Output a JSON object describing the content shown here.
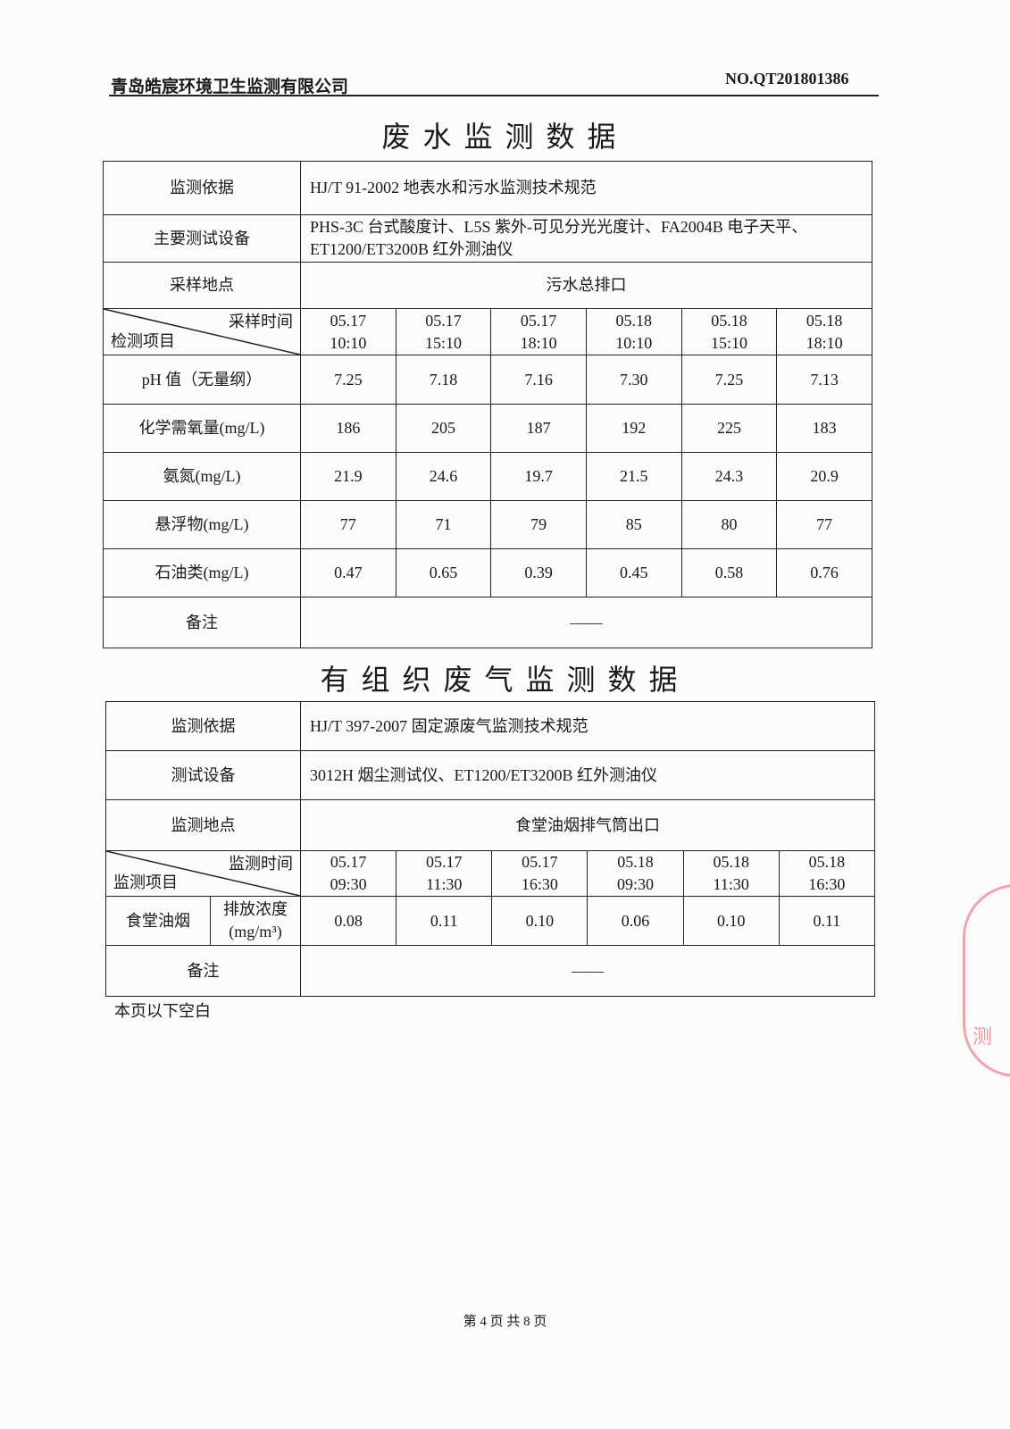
{
  "header": {
    "company": "青岛皓宸环境卫生监测有限公司",
    "report_no": "NO.QT201801386"
  },
  "wastewater": {
    "title": "废水监测数据",
    "basis_label": "监测依据",
    "basis": "HJ/T 91-2002  地表水和污水监测技术规范",
    "equipment_label": "主要测试设备",
    "equipment_line1": "PHS-3C 台式酸度计、L5S 紫外-可见分光光度计、FA2004B 电子天平、",
    "equipment_line2": "ET1200/ET3200B 红外测油仪",
    "site_label": "采样地点",
    "site": "污水总排口",
    "time_label": "采样时间",
    "item_label": "检测项目",
    "times": [
      [
        "05.17",
        "10:10"
      ],
      [
        "05.17",
        "15:10"
      ],
      [
        "05.17",
        "18:10"
      ],
      [
        "05.18",
        "10:10"
      ],
      [
        "05.18",
        "15:10"
      ],
      [
        "05.18",
        "18:10"
      ]
    ],
    "rows": [
      {
        "name": "pH 值（无量纲）",
        "values": [
          "7.25",
          "7.18",
          "7.16",
          "7.30",
          "7.25",
          "7.13"
        ]
      },
      {
        "name": "化学需氧量(mg/L)",
        "values": [
          "186",
          "205",
          "187",
          "192",
          "225",
          "183"
        ]
      },
      {
        "name": "氨氮(mg/L)",
        "values": [
          "21.9",
          "24.6",
          "19.7",
          "21.5",
          "24.3",
          "20.9"
        ]
      },
      {
        "name": "悬浮物(mg/L)",
        "values": [
          "77",
          "71",
          "79",
          "85",
          "80",
          "77"
        ]
      },
      {
        "name": "石油类(mg/L)",
        "values": [
          "0.47",
          "0.65",
          "0.39",
          "0.45",
          "0.58",
          "0.76"
        ]
      }
    ],
    "remark_label": "备注",
    "remark": "——"
  },
  "exhaust": {
    "title": "有组织废气监测数据",
    "basis_label": "监测依据",
    "basis": "HJ/T 397-2007  固定源废气监测技术规范",
    "equipment_label": "测试设备",
    "equipment": "3012H 烟尘测试仪、ET1200/ET3200B 红外测油仪",
    "site_label": "监测地点",
    "site": "食堂油烟排气筒出口",
    "time_label": "监测时间",
    "item_label": "监测项目",
    "times": [
      [
        "05.17",
        "09:30"
      ],
      [
        "05.17",
        "11:30"
      ],
      [
        "05.17",
        "16:30"
      ],
      [
        "05.18",
        "09:30"
      ],
      [
        "05.18",
        "11:30"
      ],
      [
        "05.18",
        "16:30"
      ]
    ],
    "row": {
      "name": "食堂油烟",
      "param": "排放浓度",
      "unit": "(mg/m³)",
      "values": [
        "0.08",
        "0.11",
        "0.10",
        "0.06",
        "0.10",
        "0.11"
      ]
    },
    "remark_label": "备注",
    "remark": "——"
  },
  "note": "本页以下空白",
  "footer": "第 4 页 共 8 页",
  "stamp": {
    "text": "测",
    "color": "#dc3c46"
  }
}
